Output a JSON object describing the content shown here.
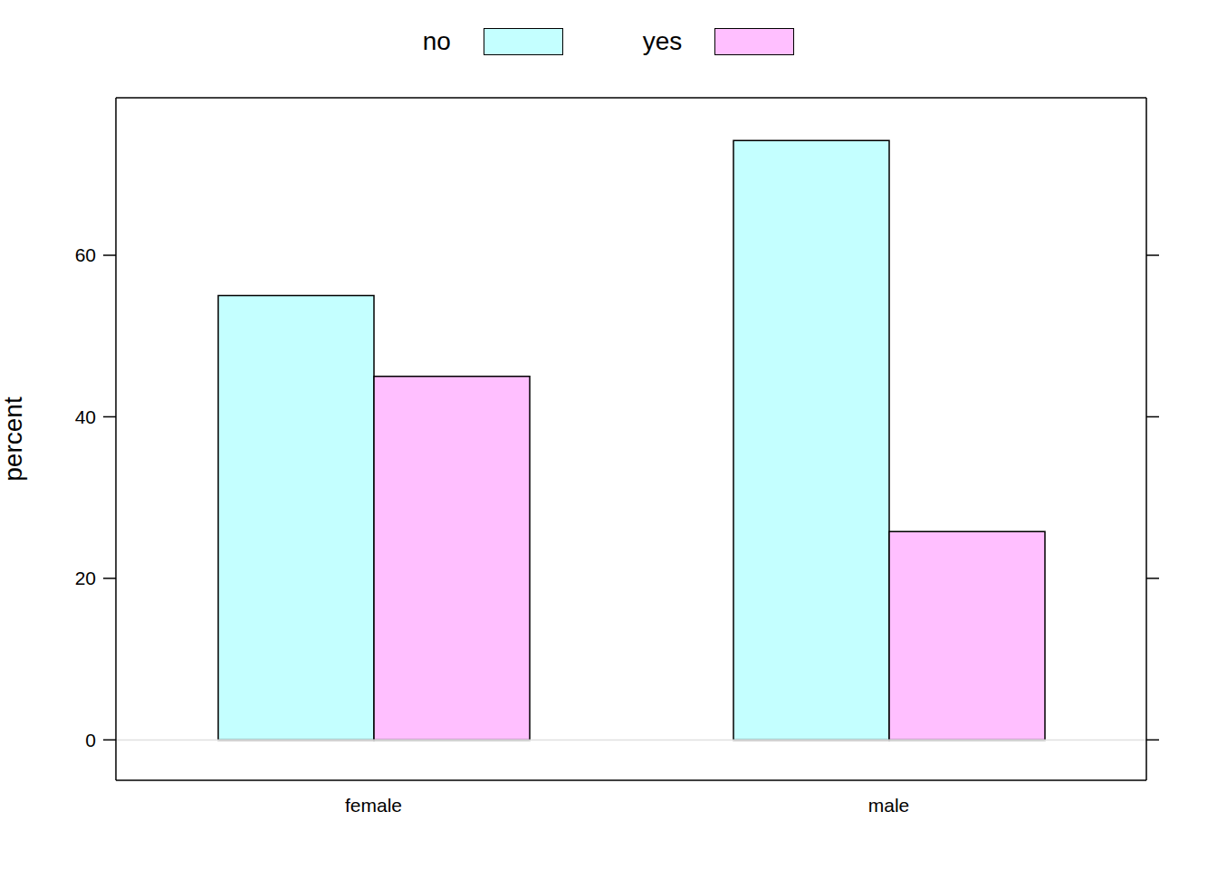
{
  "chart_data": {
    "type": "bar",
    "categories": [
      "female",
      "male"
    ],
    "series": [
      {
        "name": "no",
        "color": "#C4FFFF",
        "values": [
          55,
          74.2
        ]
      },
      {
        "name": "yes",
        "color": "#FFBFFF",
        "values": [
          45,
          25.8
        ]
      }
    ],
    "y_label": "percent",
    "ylim": [
      -5,
      79.5
    ],
    "yticks": [
      0,
      20,
      40,
      60
    ],
    "legend": "top"
  }
}
